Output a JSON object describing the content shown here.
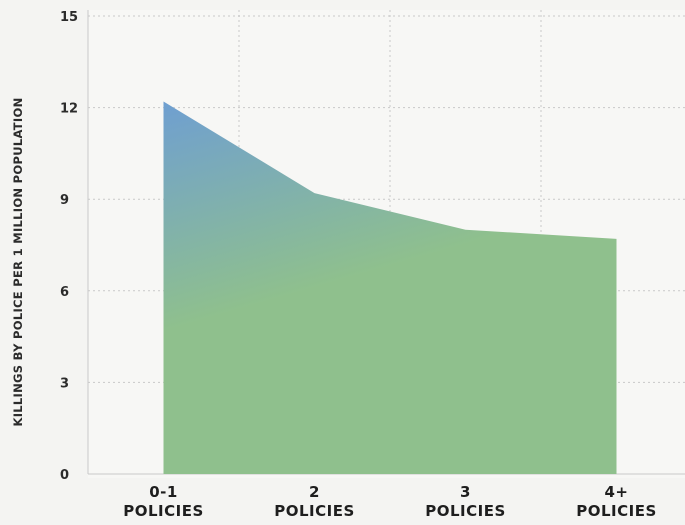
{
  "chart_data": {
    "type": "area",
    "categories": [
      "0-1 POLICIES",
      "2 POLICIES",
      "3 POLICIES",
      "4+ POLICIES"
    ],
    "category_lines": [
      [
        "0-1",
        "POLICIES"
      ],
      [
        "2",
        "POLICIES"
      ],
      [
        "3",
        "POLICIES"
      ],
      [
        "4+",
        "POLICIES"
      ]
    ],
    "values": [
      12.2,
      9.2,
      8.0,
      7.7
    ],
    "ylabel": "KILLINGS BY POLICE PER 1 MILLION POPULATION",
    "ylim": [
      0,
      15
    ],
    "yticks": [
      "0",
      "3",
      "6",
      "9",
      "12",
      "15"
    ],
    "grid": true,
    "colors": {
      "area_top": "#6f9fd1",
      "area_bottom": "#8fc08d",
      "grid": "#c9c9c9",
      "plot_bg": "#f7f7f5"
    }
  }
}
